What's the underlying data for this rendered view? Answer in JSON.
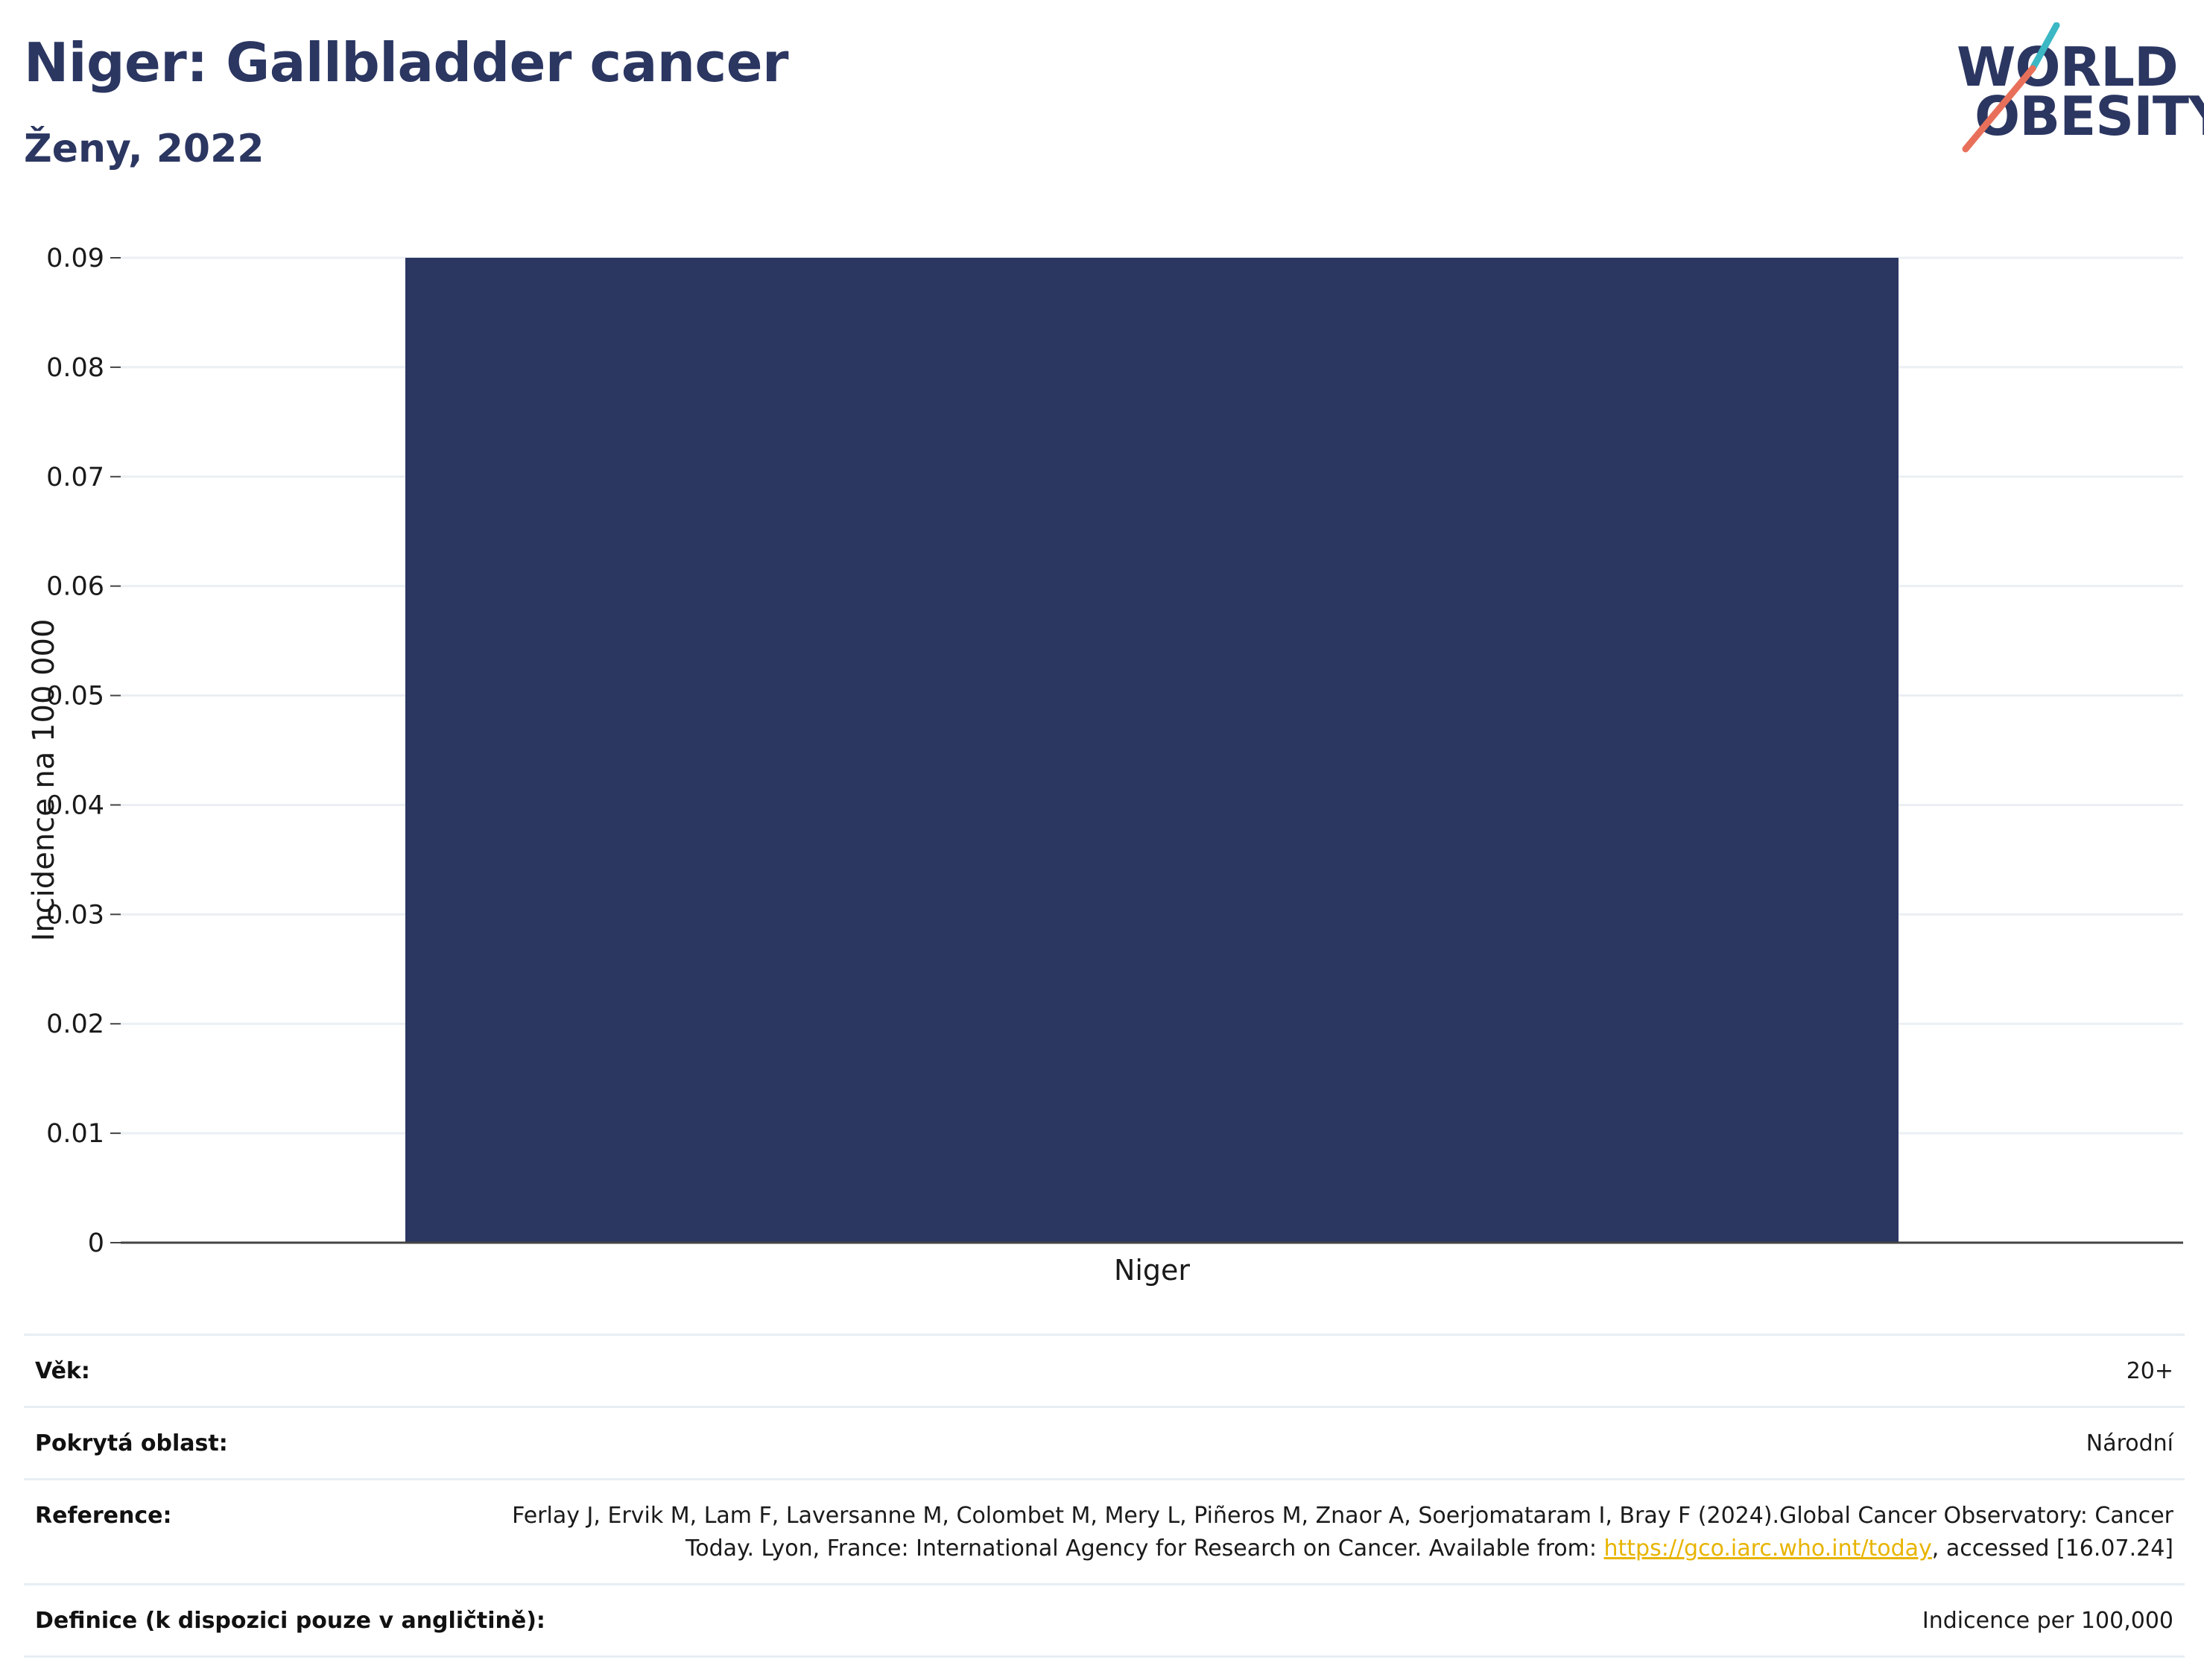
{
  "header": {
    "title": "Niger: Gallbladder cancer",
    "subtitle": "Ženy, 2022"
  },
  "logo": {
    "line1": "WORLD",
    "line2": "OBESITY",
    "colors": {
      "text": "#2b3661",
      "slash_top": "#3bb8c4",
      "slash_bottom": "#e8705a"
    }
  },
  "chart_data": {
    "type": "bar",
    "categories": [
      "Niger"
    ],
    "values": [
      0.09
    ],
    "xlabel": "",
    "ylabel": "Incidence na 100 000",
    "ylim": [
      0,
      0.09
    ],
    "yticks": [
      "0",
      "0.01",
      "0.02",
      "0.03",
      "0.04",
      "0.05",
      "0.06",
      "0.07",
      "0.08",
      "0.09"
    ],
    "grid": true,
    "bar_color": "#2b3661"
  },
  "info": {
    "age_label": "Věk:",
    "age_value": "20+",
    "coverage_label": "Pokrytá oblast:",
    "coverage_value": "Národní",
    "reference_label": "Reference:",
    "reference_text_1": "Ferlay J, Ervik M, Lam F, Laversanne M, Colombet M, Mery L, Piñeros M, Znaor A, Soerjomataram I, Bray F (2024).Global Cancer Observatory: Cancer Today. Lyon, France: International Agency for Research on Cancer. Available from: ",
    "reference_link": "https://gco.iarc.who.int/today",
    "reference_text_2": ", accessed [16.07.24]",
    "definition_label": "Definice (k dispozici pouze v angličtině):",
    "definition_value": "Indicence per 100,000"
  }
}
